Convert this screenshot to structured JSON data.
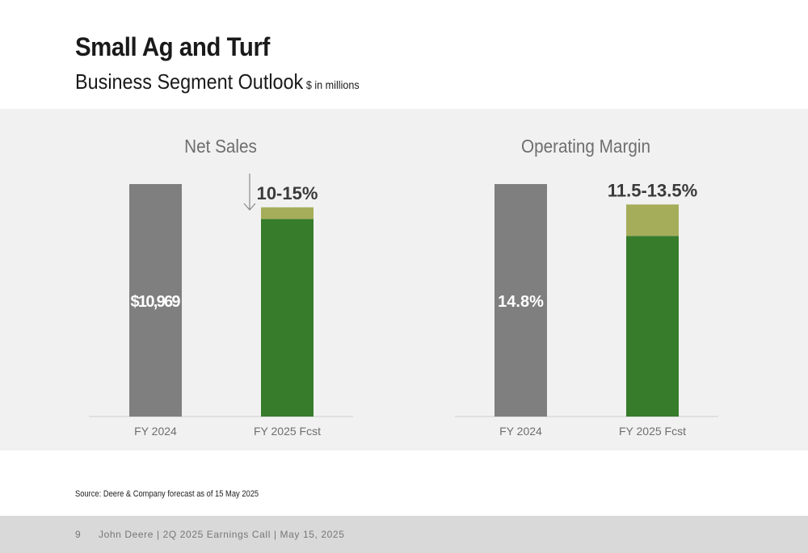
{
  "header": {
    "title": "Small Ag and Turf",
    "subtitle": "Business Segment Outlook",
    "unit_note": "$ in millions"
  },
  "chart_data": [
    {
      "type": "bar",
      "title": "Net Sales",
      "categories": [
        "FY 2024",
        "FY 2025 Fcst"
      ],
      "bars": [
        {
          "category": "FY 2024",
          "value": 10969,
          "label": "$10,969",
          "color": "#7f7f7f"
        },
        {
          "category": "FY 2025 Fcst",
          "range_low": 9324,
          "range_high": 9872,
          "label": "10-15%",
          "trend": "down",
          "color_base": "#367c2b",
          "color_range": "#a5ad5a"
        }
      ],
      "ylim": [
        0,
        10969
      ]
    },
    {
      "type": "bar",
      "title": "Operating Margin",
      "categories": [
        "FY 2024",
        "FY 2025 Fcst"
      ],
      "bars": [
        {
          "category": "FY 2024",
          "value": 14.8,
          "label": "14.8%",
          "color": "#7f7f7f"
        },
        {
          "category": "FY 2025 Fcst",
          "range_low": 11.5,
          "range_high": 13.5,
          "label": "11.5-13.5%",
          "color_base": "#367c2b",
          "color_range": "#a5ad5a"
        }
      ],
      "ylim": [
        0,
        14.8
      ]
    }
  ],
  "source": "Source: Deere & Company forecast as of 15 May 2025",
  "footer": {
    "page": "9",
    "text": "John Deere | 2Q 2025 Earnings Call | May 15, 2025"
  }
}
